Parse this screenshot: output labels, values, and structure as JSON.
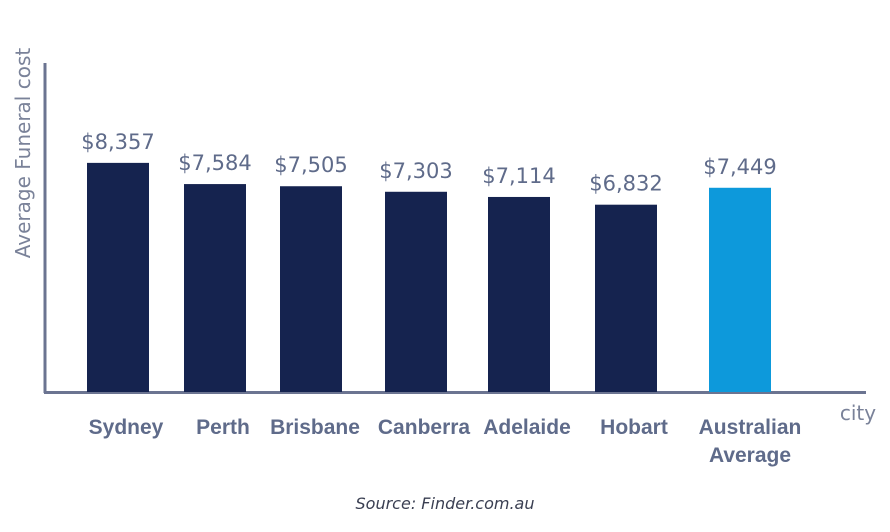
{
  "chart_data": {
    "type": "bar",
    "categories": [
      "Sydney",
      "Perth",
      "Brisbane",
      "Canberra",
      "Adelaide",
      "Hobart",
      "Australian Average"
    ],
    "category_lines": [
      [
        "Sydney"
      ],
      [
        "Perth"
      ],
      [
        "Brisbane"
      ],
      [
        "Canberra"
      ],
      [
        "Adelaide"
      ],
      [
        "Hobart"
      ],
      [
        "Australian",
        "Average"
      ]
    ],
    "values": [
      8357,
      7584,
      7505,
      7303,
      7114,
      6832,
      7449
    ],
    "value_labels": [
      "$8,357",
      "$7,584",
      "$7,505",
      "$7,303",
      "$7,114",
      "$6,832",
      "$7,449"
    ],
    "ylabel": "Average Funeral cost",
    "xlabel": "city",
    "ylim": [
      0,
      12000
    ],
    "grid": false,
    "colors": {
      "bar": "#15234f",
      "highlight": "#0d99db",
      "axis": "#6b7491",
      "label": "#5f6b8a"
    },
    "highlight_index": 6
  },
  "source": "Source: Finder.com.au"
}
